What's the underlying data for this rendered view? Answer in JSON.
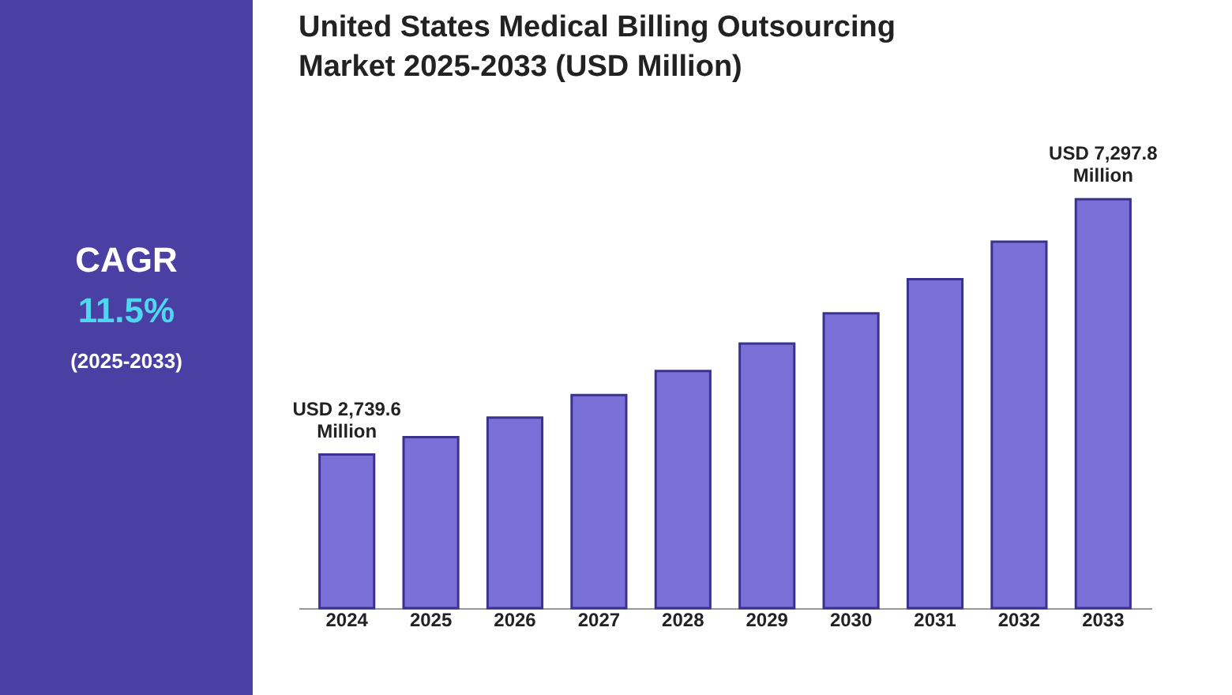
{
  "chart_data": {
    "type": "bar",
    "title": [
      "United States Medical Billing Outsourcing",
      "Market 2025-2033 (USD Million)"
    ],
    "categories": [
      "2024",
      "2025",
      "2026",
      "2027",
      "2028",
      "2029",
      "2030",
      "2031",
      "2032",
      "2033"
    ],
    "values": [
      2739.6,
      3050,
      3400,
      3800,
      4230,
      4720,
      5260,
      5870,
      6540,
      7297.8
    ],
    "value_labels": [
      "USD 2,739.6 Million",
      null,
      null,
      null,
      null,
      null,
      null,
      null,
      null,
      "USD 7,297.8 Million"
    ],
    "color": "#7b70d8",
    "annotations": [
      "CAGR",
      "11.5%",
      "(2025-2033)"
    ],
    "grid": false
  }
}
